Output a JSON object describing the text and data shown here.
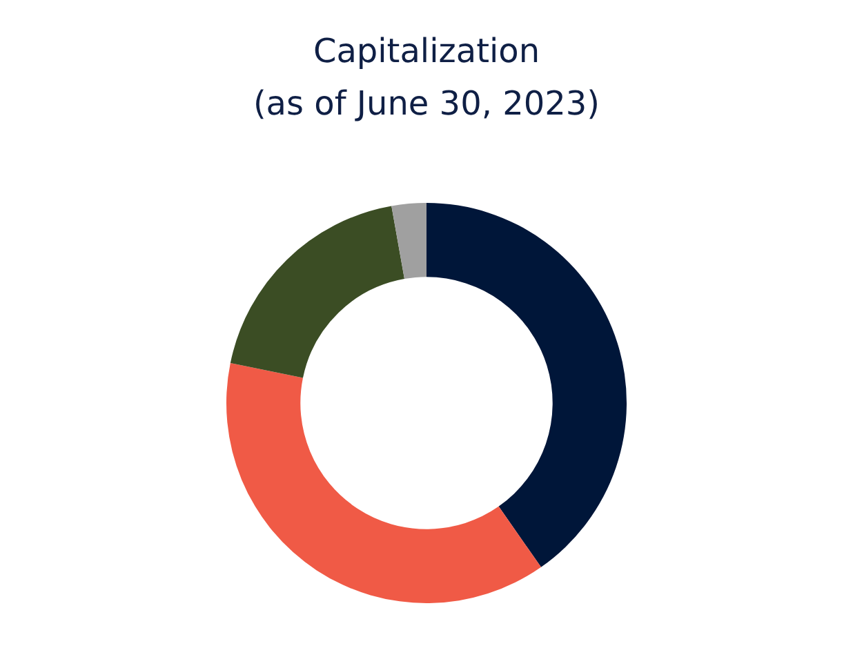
{
  "chart_data": {
    "type": "donut",
    "title": "Capitalization",
    "subtitle": "(as of June 30, 2023)",
    "categories": [
      null,
      null,
      null,
      null
    ],
    "values": [
      40.3,
      37.9,
      19.0,
      2.8
    ],
    "colors": [
      "#001639",
      "#f05a46",
      "#3b4d24",
      "#a0a0a0"
    ]
  }
}
